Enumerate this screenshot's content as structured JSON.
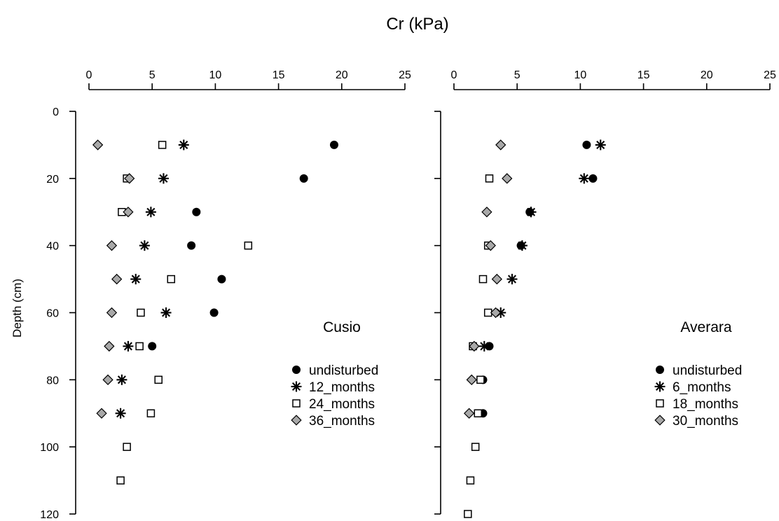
{
  "chart_data": {
    "type": "scatter",
    "title": "Cr (kPa)",
    "ylabel": "Depth (cm)",
    "xlim": [
      0,
      25
    ],
    "ylim": [
      0,
      120
    ],
    "x_ticks": [
      0,
      5,
      10,
      15,
      20,
      25
    ],
    "y_ticks": [
      0,
      20,
      40,
      60,
      80,
      100,
      120
    ],
    "legend_position": "right",
    "colors": {
      "marker": "#000000",
      "diamond_fill": "#a8a8a8",
      "open_fill": "#ffffff"
    },
    "panels": [
      {
        "label": "Cusio",
        "series": [
          {
            "name": "undisturbed",
            "marker": "filled-circle",
            "points": [
              {
                "x": 19.4,
                "y": 10
              },
              {
                "x": 17.0,
                "y": 20
              },
              {
                "x": 8.5,
                "y": 30
              },
              {
                "x": 8.1,
                "y": 40
              },
              {
                "x": 10.5,
                "y": 50
              },
              {
                "x": 9.9,
                "y": 60
              },
              {
                "x": 5.0,
                "y": 70
              }
            ]
          },
          {
            "name": "12_months",
            "marker": "asterisk",
            "points": [
              {
                "x": 7.5,
                "y": 10
              },
              {
                "x": 5.9,
                "y": 20
              },
              {
                "x": 4.9,
                "y": 30
              },
              {
                "x": 4.4,
                "y": 40
              },
              {
                "x": 3.7,
                "y": 50
              },
              {
                "x": 6.1,
                "y": 60
              },
              {
                "x": 3.1,
                "y": 70
              },
              {
                "x": 2.6,
                "y": 80
              },
              {
                "x": 2.5,
                "y": 90
              }
            ]
          },
          {
            "name": "24_months",
            "marker": "open-square",
            "points": [
              {
                "x": 5.8,
                "y": 10
              },
              {
                "x": 3.0,
                "y": 20
              },
              {
                "x": 2.6,
                "y": 30
              },
              {
                "x": 12.6,
                "y": 40
              },
              {
                "x": 6.5,
                "y": 50
              },
              {
                "x": 4.1,
                "y": 60
              },
              {
                "x": 4.0,
                "y": 70
              },
              {
                "x": 5.5,
                "y": 80
              },
              {
                "x": 4.9,
                "y": 90
              },
              {
                "x": 3.0,
                "y": 100
              },
              {
                "x": 2.5,
                "y": 110
              }
            ]
          },
          {
            "name": "36_months",
            "marker": "gray-diamond",
            "points": [
              {
                "x": 0.7,
                "y": 10
              },
              {
                "x": 3.2,
                "y": 20
              },
              {
                "x": 3.1,
                "y": 30
              },
              {
                "x": 1.8,
                "y": 40
              },
              {
                "x": 2.2,
                "y": 50
              },
              {
                "x": 1.8,
                "y": 60
              },
              {
                "x": 1.6,
                "y": 70
              },
              {
                "x": 1.5,
                "y": 80
              },
              {
                "x": 1.0,
                "y": 90
              }
            ]
          }
        ]
      },
      {
        "label": "Averara",
        "series": [
          {
            "name": "undisturbed",
            "marker": "filled-circle",
            "points": [
              {
                "x": 10.5,
                "y": 10
              },
              {
                "x": 11.0,
                "y": 20
              },
              {
                "x": 6.0,
                "y": 30
              },
              {
                "x": 5.3,
                "y": 40
              },
              {
                "x": 2.8,
                "y": 70
              },
              {
                "x": 2.3,
                "y": 80
              },
              {
                "x": 2.3,
                "y": 90
              }
            ]
          },
          {
            "name": "6_months",
            "marker": "asterisk",
            "points": [
              {
                "x": 11.6,
                "y": 10
              },
              {
                "x": 10.3,
                "y": 20
              },
              {
                "x": 6.1,
                "y": 30
              },
              {
                "x": 5.4,
                "y": 40
              },
              {
                "x": 4.6,
                "y": 50
              },
              {
                "x": 3.7,
                "y": 60
              },
              {
                "x": 2.4,
                "y": 70
              }
            ]
          },
          {
            "name": "18_months",
            "marker": "open-square",
            "points": [
              {
                "x": 2.8,
                "y": 20
              },
              {
                "x": 2.7,
                "y": 40
              },
              {
                "x": 2.3,
                "y": 50
              },
              {
                "x": 2.7,
                "y": 60
              },
              {
                "x": 1.5,
                "y": 70
              },
              {
                "x": 2.1,
                "y": 80
              },
              {
                "x": 1.9,
                "y": 90
              },
              {
                "x": 1.7,
                "y": 100
              },
              {
                "x": 1.3,
                "y": 110
              },
              {
                "x": 1.1,
                "y": 120
              }
            ]
          },
          {
            "name": "30_months",
            "marker": "gray-diamond",
            "points": [
              {
                "x": 3.7,
                "y": 10
              },
              {
                "x": 4.2,
                "y": 20
              },
              {
                "x": 2.6,
                "y": 30
              },
              {
                "x": 2.9,
                "y": 40
              },
              {
                "x": 3.4,
                "y": 50
              },
              {
                "x": 3.3,
                "y": 60
              },
              {
                "x": 1.6,
                "y": 70
              },
              {
                "x": 1.4,
                "y": 80
              },
              {
                "x": 1.2,
                "y": 90
              }
            ]
          }
        ]
      }
    ]
  }
}
